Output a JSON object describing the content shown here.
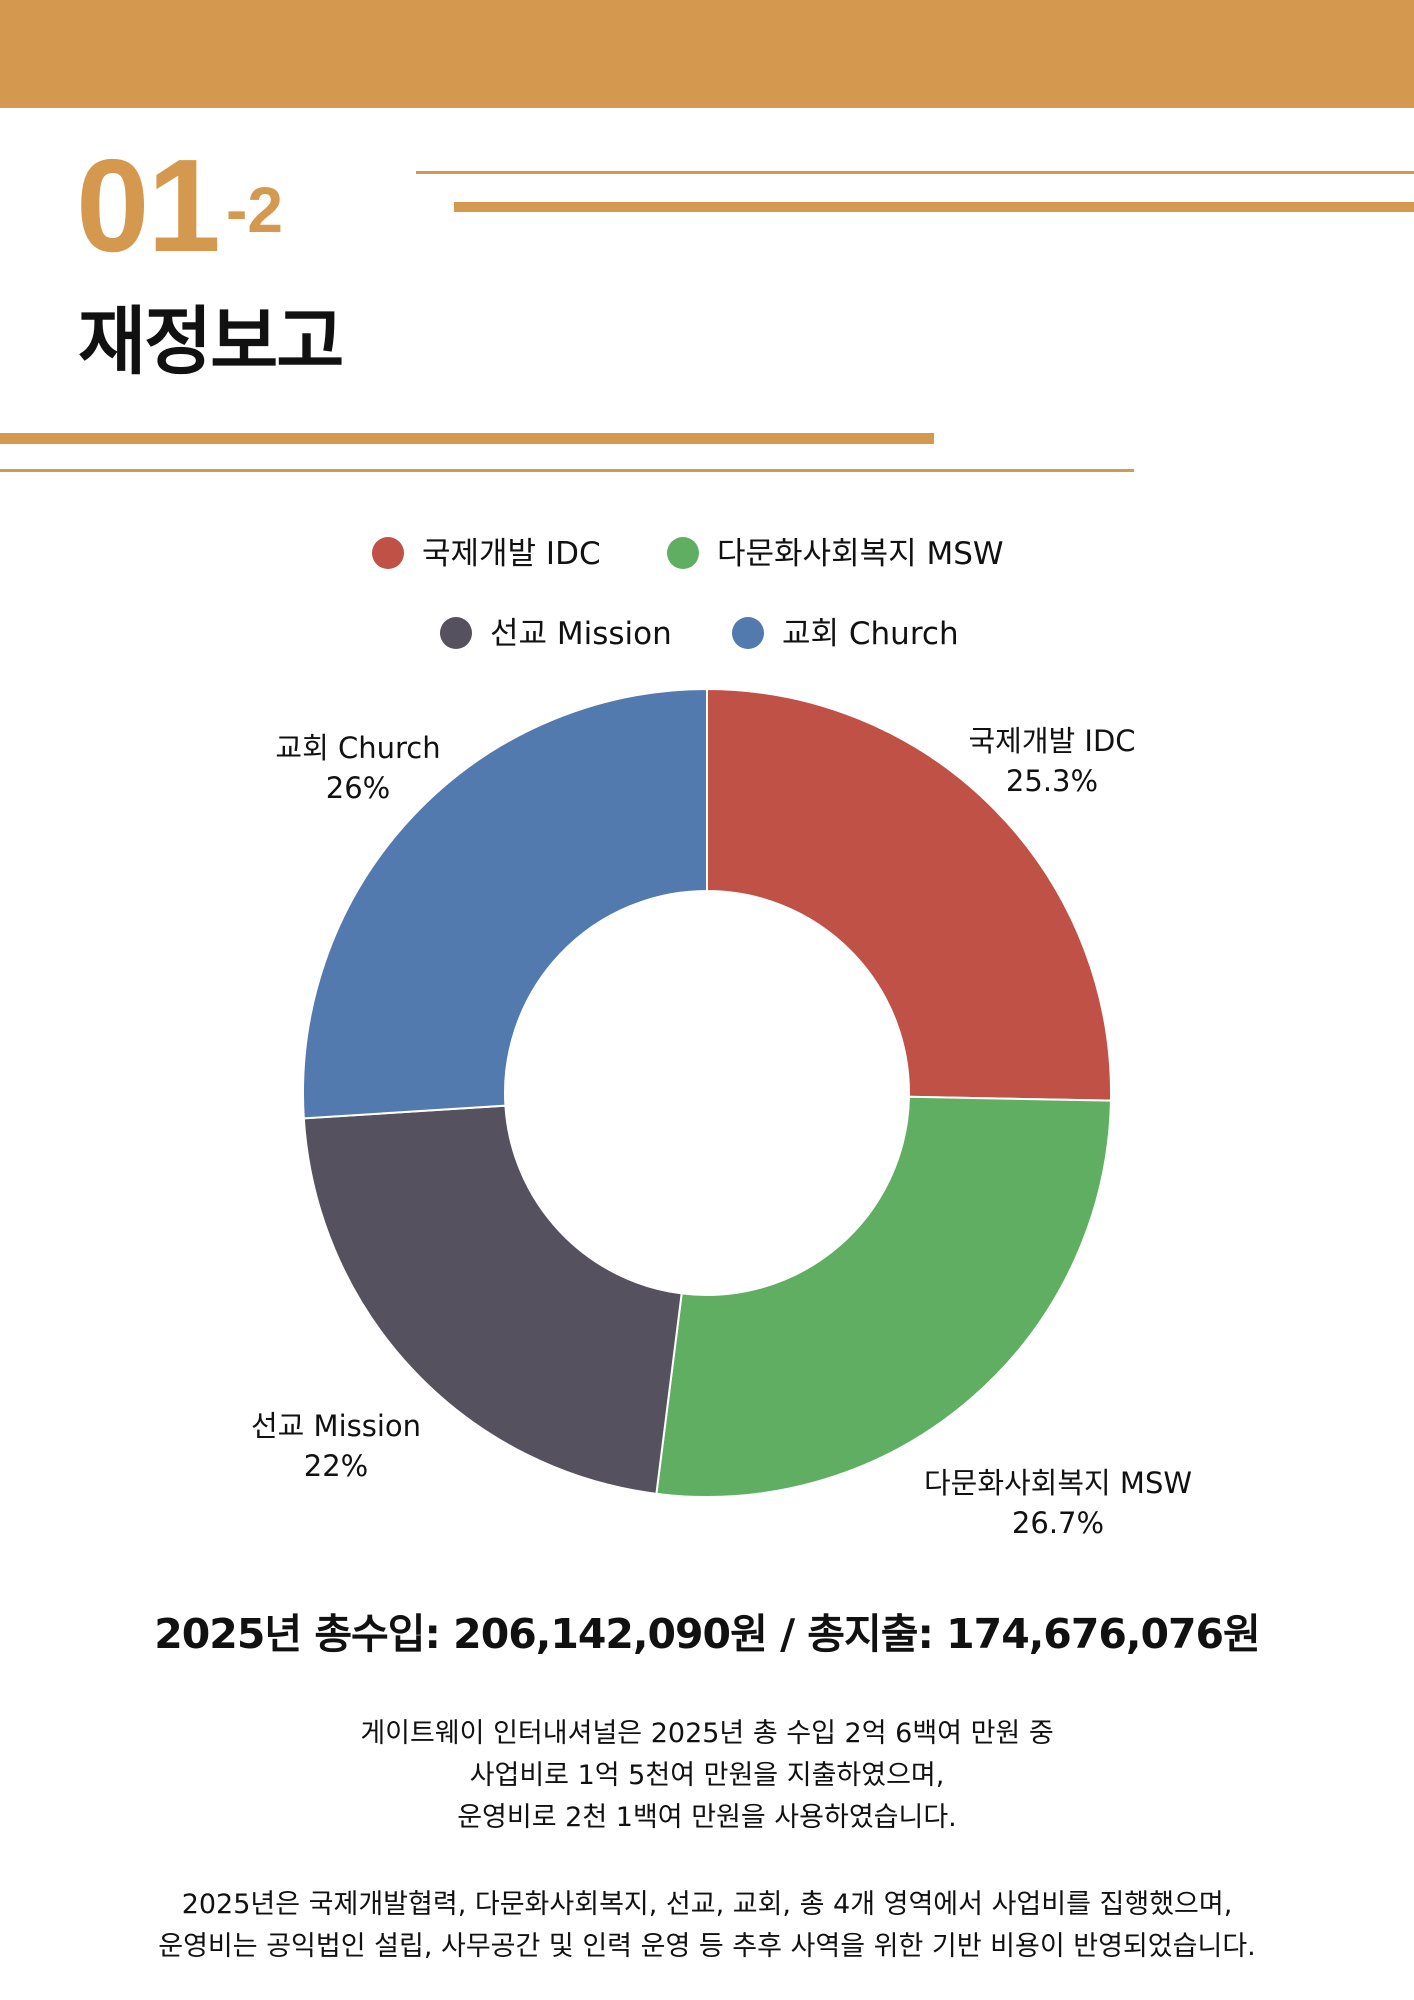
{
  "header": {
    "section_number": "01",
    "section_sub": "-2",
    "title": "재정보고"
  },
  "colors": {
    "accent": "#d4994f",
    "idc": "#bf5146",
    "msw": "#5fae62",
    "mission": "#55515f",
    "church": "#527aae"
  },
  "chart_data": {
    "type": "pie",
    "donut": true,
    "legend_position": "top",
    "slices": [
      {
        "name": "국제개발 IDC",
        "value": 25.3,
        "label": "25.3%",
        "color": "#bf5146"
      },
      {
        "name": "다문화사회복지 MSW",
        "value": 26.7,
        "label": "26.7%",
        "color": "#5fae62"
      },
      {
        "name": "선교 Mission",
        "value": 22,
        "label": "22%",
        "color": "#55515f"
      },
      {
        "name": "교회 Church",
        "value": 26,
        "label": "26%",
        "color": "#527aae"
      }
    ]
  },
  "summary": "2025년 총수입: 206,142,090원 / 총지출: 174,676,076원",
  "paragraph1": [
    "게이트웨이 인터내셔널은 2025년 총 수입 2억 6백여 만원 중",
    "사업비로 1억 5천여 만원을 지출하였으며,",
    "운영비로 2천 1백여 만원을 사용하였습니다."
  ],
  "paragraph2": [
    "2025년은 국제개발협력, 다문화사회복지, 선교, 교회, 총 4개 영역에서 사업비를 집행했으며,",
    "운영비는 공익법인 설립, 사무공간 및 인력 운영 등 추후 사역을 위한 기반 비용이 반영되었습니다."
  ]
}
